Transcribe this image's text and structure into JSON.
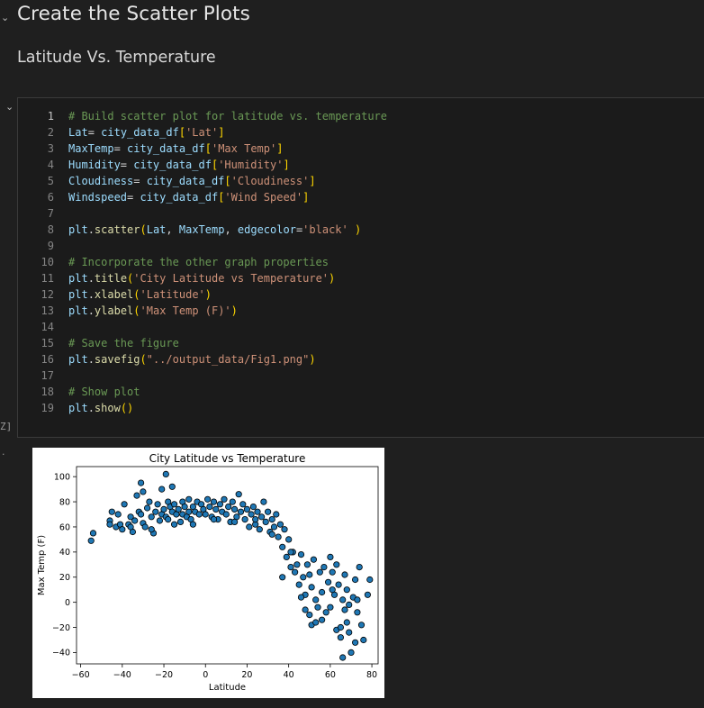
{
  "headings": {
    "title": "Create the Scatter Plots",
    "subtitle": "Latitude Vs. Temperature"
  },
  "cell": {
    "execution_label": "Z]",
    "lines": [
      {
        "n": "1",
        "tokens": [
          {
            "t": "# Build scatter plot for latitude vs. temperature",
            "c": "cm"
          }
        ]
      },
      {
        "n": "2",
        "tokens": [
          {
            "t": "Lat",
            "c": "var"
          },
          {
            "t": "= ",
            "c": "op"
          },
          {
            "t": "city_data_df",
            "c": "var"
          },
          {
            "t": "[",
            "c": "br"
          },
          {
            "t": "'Lat'",
            "c": "str"
          },
          {
            "t": "]",
            "c": "br"
          }
        ]
      },
      {
        "n": "3",
        "tokens": [
          {
            "t": "MaxTemp",
            "c": "var"
          },
          {
            "t": "= ",
            "c": "op"
          },
          {
            "t": "city_data_df",
            "c": "var"
          },
          {
            "t": "[",
            "c": "br"
          },
          {
            "t": "'Max Temp'",
            "c": "str"
          },
          {
            "t": "]",
            "c": "br"
          }
        ]
      },
      {
        "n": "4",
        "tokens": [
          {
            "t": "Humidity",
            "c": "var"
          },
          {
            "t": "= ",
            "c": "op"
          },
          {
            "t": "city_data_df",
            "c": "var"
          },
          {
            "t": "[",
            "c": "br"
          },
          {
            "t": "'Humidity'",
            "c": "str"
          },
          {
            "t": "]",
            "c": "br"
          }
        ]
      },
      {
        "n": "5",
        "tokens": [
          {
            "t": "Cloudiness",
            "c": "var"
          },
          {
            "t": "= ",
            "c": "op"
          },
          {
            "t": "city_data_df",
            "c": "var"
          },
          {
            "t": "[",
            "c": "br"
          },
          {
            "t": "'Cloudiness'",
            "c": "str"
          },
          {
            "t": "]",
            "c": "br"
          }
        ]
      },
      {
        "n": "6",
        "tokens": [
          {
            "t": "Windspeed",
            "c": "var"
          },
          {
            "t": "= ",
            "c": "op"
          },
          {
            "t": "city_data_df",
            "c": "var"
          },
          {
            "t": "[",
            "c": "br"
          },
          {
            "t": "'Wind Speed'",
            "c": "str"
          },
          {
            "t": "]",
            "c": "br"
          }
        ]
      },
      {
        "n": "7",
        "tokens": []
      },
      {
        "n": "8",
        "tokens": [
          {
            "t": "plt",
            "c": "var"
          },
          {
            "t": ".",
            "c": "op"
          },
          {
            "t": "scatter",
            "c": "fn"
          },
          {
            "t": "(",
            "c": "br"
          },
          {
            "t": "Lat",
            "c": "var"
          },
          {
            "t": ", ",
            "c": "op"
          },
          {
            "t": "MaxTemp",
            "c": "var"
          },
          {
            "t": ", ",
            "c": "op"
          },
          {
            "t": "edgecolor",
            "c": "var"
          },
          {
            "t": "=",
            "c": "op"
          },
          {
            "t": "'black'",
            "c": "str"
          },
          {
            "t": " ",
            "c": "op"
          },
          {
            "t": ")",
            "c": "br"
          }
        ]
      },
      {
        "n": "9",
        "tokens": []
      },
      {
        "n": "10",
        "tokens": [
          {
            "t": "# Incorporate the other graph properties",
            "c": "cm"
          }
        ]
      },
      {
        "n": "11",
        "tokens": [
          {
            "t": "plt",
            "c": "var"
          },
          {
            "t": ".",
            "c": "op"
          },
          {
            "t": "title",
            "c": "fn"
          },
          {
            "t": "(",
            "c": "br"
          },
          {
            "t": "'City Latitude vs Temperature'",
            "c": "str"
          },
          {
            "t": ")",
            "c": "br"
          }
        ]
      },
      {
        "n": "12",
        "tokens": [
          {
            "t": "plt",
            "c": "var"
          },
          {
            "t": ".",
            "c": "op"
          },
          {
            "t": "xlabel",
            "c": "fn"
          },
          {
            "t": "(",
            "c": "br"
          },
          {
            "t": "'Latitude'",
            "c": "str"
          },
          {
            "t": ")",
            "c": "br"
          }
        ]
      },
      {
        "n": "13",
        "tokens": [
          {
            "t": "plt",
            "c": "var"
          },
          {
            "t": ".",
            "c": "op"
          },
          {
            "t": "ylabel",
            "c": "fn"
          },
          {
            "t": "(",
            "c": "br"
          },
          {
            "t": "'Max Temp (F)'",
            "c": "str"
          },
          {
            "t": ")",
            "c": "br"
          }
        ]
      },
      {
        "n": "14",
        "tokens": []
      },
      {
        "n": "15",
        "tokens": [
          {
            "t": "# Save the figure",
            "c": "cm"
          }
        ]
      },
      {
        "n": "16",
        "tokens": [
          {
            "t": "plt",
            "c": "var"
          },
          {
            "t": ".",
            "c": "op"
          },
          {
            "t": "savefig",
            "c": "fn"
          },
          {
            "t": "(",
            "c": "br"
          },
          {
            "t": "\"../output_data/Fig1.png\"",
            "c": "str"
          },
          {
            "t": ")",
            "c": "br"
          }
        ]
      },
      {
        "n": "17",
        "tokens": []
      },
      {
        "n": "18",
        "tokens": [
          {
            "t": "# Show plot",
            "c": "cm"
          }
        ]
      },
      {
        "n": "19",
        "tokens": [
          {
            "t": "plt",
            "c": "var"
          },
          {
            "t": ".",
            "c": "op"
          },
          {
            "t": "show",
            "c": "fn"
          },
          {
            "t": "()",
            "c": "br"
          }
        ]
      }
    ]
  },
  "chart_data": {
    "type": "scatter",
    "title": "City Latitude vs Temperature",
    "xlabel": "Latitude",
    "ylabel": "Max Temp (F)",
    "xlim": [
      -62,
      83
    ],
    "ylim": [
      -49,
      108
    ],
    "xticks": [
      -60,
      -40,
      -20,
      0,
      20,
      40,
      60,
      80
    ],
    "yticks": [
      -40,
      -20,
      0,
      20,
      40,
      60,
      80,
      100
    ],
    "grid": false,
    "marker_fill": "#1f77b4",
    "marker_edge": "#000000",
    "points": [
      [
        -55,
        49
      ],
      [
        -54,
        55
      ],
      [
        -46,
        65
      ],
      [
        -46,
        62
      ],
      [
        -45,
        72
      ],
      [
        -43,
        60
      ],
      [
        -42,
        70
      ],
      [
        -41,
        62
      ],
      [
        -40,
        58
      ],
      [
        -39,
        78
      ],
      [
        -37,
        62
      ],
      [
        -36,
        68
      ],
      [
        -35,
        56
      ],
      [
        -34,
        65
      ],
      [
        -33,
        85
      ],
      [
        -32,
        72
      ],
      [
        -31,
        95
      ],
      [
        -31,
        70
      ],
      [
        -30,
        63
      ],
      [
        -30,
        88
      ],
      [
        -29,
        60
      ],
      [
        -28,
        75
      ],
      [
        -27,
        80
      ],
      [
        -26,
        68
      ],
      [
        -25,
        55
      ],
      [
        -24,
        72
      ],
      [
        -23,
        78
      ],
      [
        -22,
        65
      ],
      [
        -21,
        90
      ],
      [
        -21,
        70
      ],
      [
        -20,
        74
      ],
      [
        -19,
        102
      ],
      [
        -19,
        68
      ],
      [
        -18,
        80
      ],
      [
        -18,
        66
      ],
      [
        -17,
        76
      ],
      [
        -16,
        92
      ],
      [
        -16,
        72
      ],
      [
        -15,
        78
      ],
      [
        -14,
        70
      ],
      [
        -13,
        74
      ],
      [
        -12,
        64
      ],
      [
        -11,
        80
      ],
      [
        -11,
        70
      ],
      [
        -10,
        76
      ],
      [
        -9,
        68
      ],
      [
        -8,
        82
      ],
      [
        -8,
        72
      ],
      [
        -7,
        66
      ],
      [
        -6,
        76
      ],
      [
        -5,
        72
      ],
      [
        -4,
        80
      ],
      [
        -3,
        70
      ],
      [
        -2,
        78
      ],
      [
        -1,
        74
      ],
      [
        0,
        70
      ],
      [
        1,
        82
      ],
      [
        2,
        76
      ],
      [
        3,
        68
      ],
      [
        4,
        80
      ],
      [
        5,
        74
      ],
      [
        6,
        66
      ],
      [
        7,
        78
      ],
      [
        8,
        72
      ],
      [
        9,
        82
      ],
      [
        10,
        70
      ],
      [
        11,
        76
      ],
      [
        12,
        64
      ],
      [
        13,
        80
      ],
      [
        14,
        74
      ],
      [
        15,
        68
      ],
      [
        16,
        86
      ],
      [
        17,
        72
      ],
      [
        18,
        78
      ],
      [
        19,
        66
      ],
      [
        20,
        74
      ],
      [
        21,
        60
      ],
      [
        22,
        70
      ],
      [
        23,
        76
      ],
      [
        24,
        62
      ],
      [
        25,
        72
      ],
      [
        26,
        58
      ],
      [
        27,
        68
      ],
      [
        28,
        80
      ],
      [
        29,
        64
      ],
      [
        30,
        72
      ],
      [
        31,
        56
      ],
      [
        32,
        66
      ],
      [
        33,
        60
      ],
      [
        34,
        70
      ],
      [
        35,
        52
      ],
      [
        36,
        62
      ],
      [
        37,
        44
      ],
      [
        37,
        20
      ],
      [
        38,
        58
      ],
      [
        39,
        36
      ],
      [
        40,
        50
      ],
      [
        41,
        28
      ],
      [
        42,
        40
      ],
      [
        43,
        24
      ],
      [
        44,
        30
      ],
      [
        45,
        14
      ],
      [
        46,
        38
      ],
      [
        47,
        20
      ],
      [
        48,
        6
      ],
      [
        48,
        -6
      ],
      [
        49,
        30
      ],
      [
        50,
        -10
      ],
      [
        51,
        12
      ],
      [
        51,
        -18
      ],
      [
        52,
        34
      ],
      [
        53,
        2
      ],
      [
        53,
        -16
      ],
      [
        54,
        -4
      ],
      [
        55,
        24
      ],
      [
        56,
        8
      ],
      [
        57,
        28
      ],
      [
        58,
        -8
      ],
      [
        59,
        16
      ],
      [
        60,
        36
      ],
      [
        60,
        -4
      ],
      [
        61,
        24
      ],
      [
        62,
        6
      ],
      [
        63,
        -22
      ],
      [
        63,
        30
      ],
      [
        64,
        14
      ],
      [
        65,
        -20
      ],
      [
        65,
        -28
      ],
      [
        66,
        2
      ],
      [
        66,
        -44
      ],
      [
        67,
        22
      ],
      [
        68,
        -16
      ],
      [
        68,
        10
      ],
      [
        69,
        -2
      ],
      [
        69,
        -24
      ],
      [
        70,
        -40
      ],
      [
        71,
        4
      ],
      [
        72,
        -32
      ],
      [
        72,
        18
      ],
      [
        73,
        -8
      ],
      [
        74,
        28
      ],
      [
        75,
        -18
      ],
      [
        76,
        -30
      ],
      [
        78,
        6
      ],
      [
        79,
        18
      ],
      [
        -36,
        60
      ],
      [
        -26,
        58
      ],
      [
        -15,
        62
      ],
      [
        -6,
        62
      ],
      [
        4,
        66
      ],
      [
        14,
        64
      ],
      [
        24,
        66
      ],
      [
        32,
        54
      ],
      [
        41,
        40
      ],
      [
        46,
        4
      ],
      [
        50,
        22
      ],
      [
        56,
        -14
      ],
      [
        61,
        10
      ],
      [
        67,
        -6
      ],
      [
        73,
        2
      ]
    ]
  }
}
